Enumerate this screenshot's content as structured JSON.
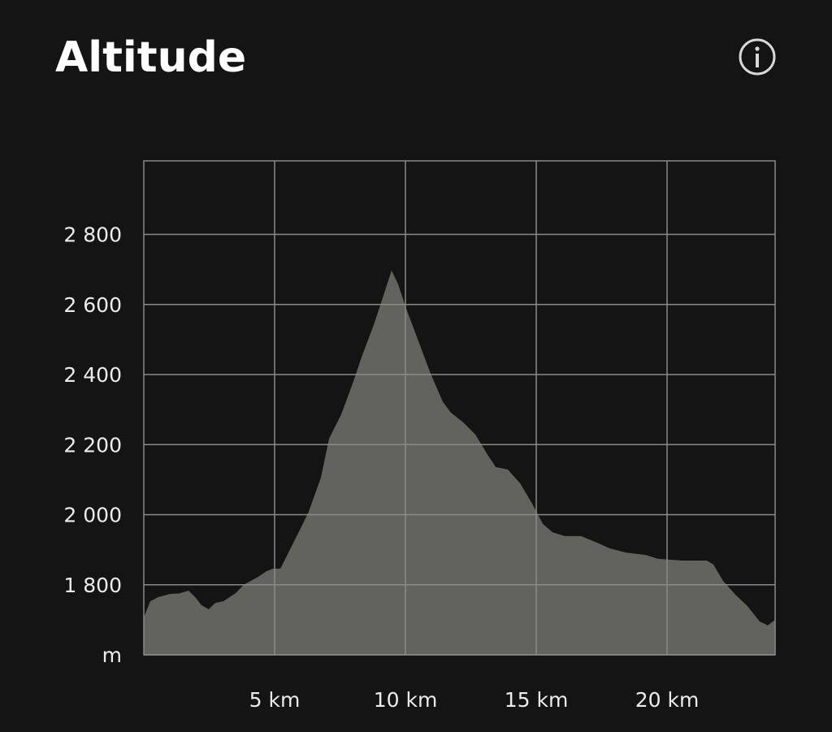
{
  "chart_data": {
    "type": "area",
    "title": "Altitude",
    "x": [
      0,
      0.25,
      0.56,
      1.02,
      1.34,
      1.71,
      1.96,
      2.2,
      2.48,
      2.73,
      3.04,
      3.51,
      3.82,
      4.38,
      4.69,
      4.94,
      5.22,
      5.53,
      6.0,
      6.3,
      6.77,
      7.08,
      7.55,
      8.01,
      8.32,
      8.79,
      9.1,
      9.47,
      9.72,
      10.03,
      10.5,
      10.96,
      11.43,
      11.74,
      12.2,
      12.67,
      13.14,
      13.45,
      13.91,
      14.38,
      14.84,
      15.25,
      15.62,
      16.09,
      16.71,
      17.33,
      17.8,
      18.42,
      19.19,
      19.66,
      20.59,
      21.21,
      21.52,
      21.77,
      22.14,
      22.61,
      23.07,
      23.54,
      23.85,
      24.13
    ],
    "values": [
      1707,
      1753,
      1765,
      1774,
      1775,
      1783,
      1765,
      1742,
      1730,
      1748,
      1753,
      1776,
      1800,
      1823,
      1839,
      1846,
      1846,
      1892,
      1962,
      2008,
      2106,
      2217,
      2287,
      2380,
      2449,
      2542,
      2612,
      2697,
      2658,
      2588,
      2495,
      2403,
      2322,
      2291,
      2264,
      2229,
      2171,
      2136,
      2129,
      2090,
      2032,
      1974,
      1950,
      1939,
      1939,
      1920,
      1904,
      1892,
      1885,
      1874,
      1869,
      1869,
      1869,
      1858,
      1811,
      1772,
      1739,
      1695,
      1684,
      1700
    ],
    "color": "#62635c",
    "xlim": [
      0,
      24.13
    ],
    "ylim": [
      1600,
      3010
    ],
    "xticks": [
      {
        "value": 5,
        "label": "5 km"
      },
      {
        "value": 10,
        "label": "10 km"
      },
      {
        "value": 15,
        "label": "15 km"
      },
      {
        "value": 20,
        "label": "20 km"
      }
    ],
    "yticks": [
      {
        "value": 1600,
        "label": "m"
      },
      {
        "value": 1800,
        "label": "1 800"
      },
      {
        "value": 2000,
        "label": "2 000"
      },
      {
        "value": 2200,
        "label": "2 200"
      },
      {
        "value": 2400,
        "label": "2 400"
      },
      {
        "value": 2600,
        "label": "2 600"
      },
      {
        "value": 2800,
        "label": "2 800"
      }
    ],
    "grid": true
  }
}
